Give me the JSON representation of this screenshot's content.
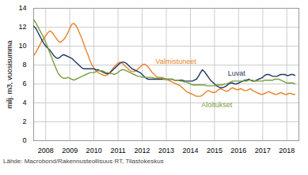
{
  "chart_data": {
    "type": "line",
    "ylabel": "milj. m3, vuosisumma",
    "caption": "Lähde: Macrobond/Rakennusteollisuus RT, Tilastokeskus",
    "xlim": [
      2007.5,
      2018.5
    ],
    "xticks": [
      2008,
      2009,
      2010,
      2011,
      2012,
      2013,
      2014,
      2015,
      2016,
      2017,
      2018
    ],
    "ylim": [
      0,
      14
    ],
    "yticks": [
      0,
      2,
      4,
      6,
      8,
      10,
      12,
      14
    ],
    "grid": true,
    "x": [
      2007.5,
      2007.583,
      2007.667,
      2007.75,
      2007.833,
      2007.917,
      2008.0,
      2008.083,
      2008.167,
      2008.25,
      2008.333,
      2008.417,
      2008.5,
      2008.583,
      2008.667,
      2008.75,
      2008.833,
      2008.917,
      2009.0,
      2009.083,
      2009.167,
      2009.25,
      2009.333,
      2009.417,
      2009.5,
      2009.583,
      2009.667,
      2009.75,
      2009.833,
      2009.917,
      2010.0,
      2010.083,
      2010.167,
      2010.25,
      2010.333,
      2010.417,
      2010.5,
      2010.583,
      2010.667,
      2010.75,
      2010.833,
      2010.917,
      2011.0,
      2011.083,
      2011.167,
      2011.25,
      2011.333,
      2011.417,
      2011.5,
      2011.583,
      2011.667,
      2011.75,
      2011.833,
      2011.917,
      2012.0,
      2012.083,
      2012.167,
      2012.25,
      2012.333,
      2012.417,
      2012.5,
      2012.583,
      2012.667,
      2012.75,
      2012.833,
      2012.917,
      2013.0,
      2013.083,
      2013.167,
      2013.25,
      2013.333,
      2013.417,
      2013.5,
      2013.583,
      2013.667,
      2013.75,
      2013.833,
      2013.917,
      2014.0,
      2014.083,
      2014.167,
      2014.25,
      2014.333,
      2014.417,
      2014.5,
      2014.583,
      2014.667,
      2014.75,
      2014.833,
      2014.917,
      2015.0,
      2015.083,
      2015.167,
      2015.25,
      2015.333,
      2015.417,
      2015.5,
      2015.583,
      2015.667,
      2015.75,
      2015.833,
      2015.917,
      2016.0,
      2016.083,
      2016.167,
      2016.25,
      2016.333,
      2016.417,
      2016.5,
      2016.583,
      2016.667,
      2016.75,
      2016.833,
      2016.917,
      2017.0,
      2017.083,
      2017.167,
      2017.25,
      2017.333,
      2017.417,
      2017.5,
      2017.583,
      2017.667,
      2017.75,
      2017.833,
      2017.917,
      2018.0,
      2018.083,
      2018.167,
      2018.25,
      2018.333
    ],
    "series": [
      {
        "name": "Valmistuneet",
        "color": "#E8832A",
        "values": [
          9.0,
          9.3,
          9.7,
          10.1,
          10.5,
          10.8,
          11.1,
          11.4,
          11.6,
          11.5,
          11.2,
          10.9,
          10.6,
          10.4,
          10.5,
          10.7,
          11.0,
          11.4,
          11.9,
          12.3,
          12.4,
          12.2,
          11.8,
          11.3,
          10.8,
          10.2,
          9.6,
          9.1,
          8.5,
          8.0,
          7.7,
          7.4,
          7.2,
          7.1,
          7.0,
          6.9,
          6.9,
          7.0,
          7.2,
          7.5,
          7.8,
          8.0,
          8.2,
          8.3,
          8.2,
          8.0,
          7.8,
          7.6,
          7.4,
          7.3,
          7.3,
          7.4,
          7.6,
          7.8,
          8.0,
          8.1,
          8.0,
          7.8,
          7.5,
          7.2,
          7.0,
          6.8,
          6.7,
          6.7,
          6.7,
          6.6,
          6.5,
          6.4,
          6.3,
          6.2,
          6.1,
          6.0,
          5.9,
          5.8,
          5.6,
          5.4,
          5.2,
          5.1,
          5.0,
          4.9,
          4.8,
          4.7,
          4.7,
          4.7,
          4.8,
          5.0,
          5.2,
          5.3,
          5.2,
          5.1,
          5.1,
          5.2,
          5.4,
          5.5,
          5.4,
          5.3,
          5.2,
          5.3,
          5.5,
          5.6,
          5.5,
          5.4,
          5.4,
          5.5,
          5.4,
          5.3,
          5.3,
          5.4,
          5.5,
          5.3,
          5.2,
          5.1,
          5.0,
          4.9,
          4.9,
          5.0,
          5.1,
          5.2,
          5.1,
          5.0,
          4.9,
          4.9,
          5.0,
          5.1,
          5.0,
          4.9,
          4.9,
          5.0,
          5.0,
          4.9,
          4.9
        ]
      },
      {
        "name": "Luvat",
        "color": "#1F3864",
        "values": [
          12.1,
          11.9,
          11.5,
          11.1,
          10.7,
          10.3,
          10.0,
          9.8,
          9.6,
          9.3,
          9.0,
          8.8,
          8.7,
          8.8,
          9.0,
          9.1,
          9.0,
          8.9,
          8.8,
          8.7,
          8.5,
          8.3,
          8.1,
          7.9,
          7.7,
          7.6,
          7.6,
          7.6,
          7.6,
          7.6,
          7.6,
          7.5,
          7.5,
          7.4,
          7.3,
          7.2,
          7.1,
          7.1,
          7.2,
          7.4,
          7.6,
          7.8,
          8.0,
          8.2,
          8.3,
          8.3,
          8.2,
          8.0,
          7.8,
          7.6,
          7.5,
          7.4,
          7.3,
          7.2,
          7.0,
          6.8,
          6.6,
          6.5,
          6.5,
          6.5,
          6.5,
          6.5,
          6.5,
          6.5,
          6.5,
          6.5,
          6.5,
          6.5,
          6.5,
          6.5,
          6.4,
          6.4,
          6.4,
          6.4,
          6.4,
          6.3,
          6.3,
          6.3,
          6.3,
          6.3,
          6.4,
          6.5,
          6.8,
          7.2,
          7.5,
          7.3,
          7.0,
          6.7,
          6.4,
          6.2,
          6.0,
          5.8,
          5.7,
          5.6,
          5.6,
          5.7,
          5.8,
          6.0,
          6.1,
          6.1,
          6.0,
          6.0,
          6.1,
          6.2,
          6.3,
          6.4,
          6.4,
          6.5,
          6.4,
          6.3,
          6.3,
          6.4,
          6.5,
          6.6,
          6.7,
          6.9,
          7.0,
          7.0,
          6.9,
          6.8,
          6.8,
          6.8,
          6.9,
          7.0,
          7.0,
          7.0,
          6.9,
          6.9,
          7.0,
          7.0,
          6.9
        ]
      },
      {
        "name": "Aloitukset",
        "color": "#7B9E3E",
        "values": [
          12.8,
          12.5,
          12.1,
          11.7,
          11.3,
          10.9,
          10.4,
          9.9,
          9.3,
          8.8,
          8.2,
          7.7,
          7.2,
          6.9,
          6.7,
          6.6,
          6.6,
          6.7,
          6.6,
          6.5,
          6.4,
          6.5,
          6.6,
          6.7,
          6.8,
          6.9,
          7.0,
          7.1,
          7.2,
          7.2,
          7.2,
          7.3,
          7.4,
          7.4,
          7.4,
          7.3,
          7.2,
          7.2,
          7.1,
          7.1,
          7.0,
          7.1,
          7.2,
          7.4,
          7.5,
          7.5,
          7.4,
          7.3,
          7.2,
          7.1,
          7.0,
          6.9,
          6.8,
          6.8,
          6.7,
          6.7,
          6.7,
          6.7,
          6.7,
          6.7,
          6.6,
          6.6,
          6.6,
          6.6,
          6.6,
          6.5,
          6.5,
          6.5,
          6.5,
          6.5,
          6.4,
          6.4,
          6.4,
          6.3,
          6.3,
          6.2,
          6.2,
          6.1,
          6.0,
          5.9,
          5.9,
          5.9,
          5.9,
          5.9,
          5.9,
          5.9,
          5.8,
          5.8,
          5.8,
          5.8,
          5.8,
          5.9,
          5.9,
          5.9,
          5.9,
          6.0,
          6.0,
          6.1,
          6.2,
          6.3,
          6.3,
          6.3,
          6.3,
          6.3,
          6.3,
          6.3,
          6.3,
          6.4,
          6.4,
          6.4,
          6.3,
          6.3,
          6.3,
          6.3,
          6.3,
          6.4,
          6.4,
          6.4,
          6.4,
          6.4,
          6.5,
          6.5,
          6.5,
          6.4,
          6.3,
          6.2,
          6.1,
          6.1,
          6.1,
          6.1,
          6.0
        ]
      }
    ],
    "annotations": [
      {
        "text": "Valmistuneet",
        "x": 2012.55,
        "y": 8.15,
        "color": "#E8832A"
      },
      {
        "text": "Luvat",
        "x": 2015.55,
        "y": 6.85,
        "color": "#1F3864"
      },
      {
        "text": "Aloitukset",
        "x": 2014.45,
        "y": 3.55,
        "color": "#7B9E3E"
      }
    ]
  }
}
